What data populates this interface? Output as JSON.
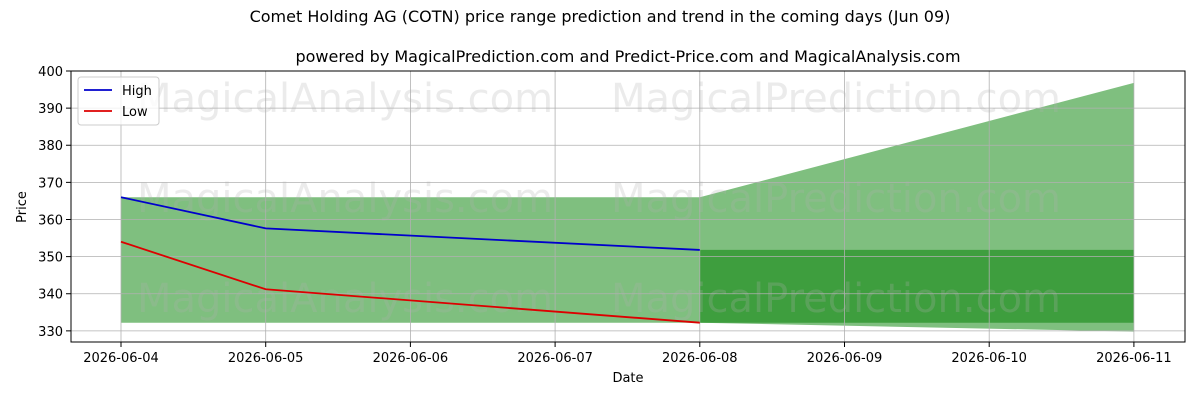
{
  "chart_data": {
    "type": "line",
    "title": "Comet Holding AG (COTN) price range prediction and trend in the coming days (Jun 09)",
    "subtitle": "powered by MagicalPrediction.com and Predict-Price.com and MagicalAnalysis.com",
    "xlabel": "Date",
    "ylabel": "Price",
    "x": [
      "2026-06-04",
      "2026-06-05",
      "2026-06-06",
      "2026-06-07",
      "2026-06-08",
      "2026-06-09",
      "2026-06-10",
      "2026-06-11"
    ],
    "ylim": [
      327,
      400
    ],
    "yticks": [
      330,
      340,
      350,
      360,
      370,
      380,
      390,
      400
    ],
    "grid": true,
    "legend_position": "top-left",
    "series": [
      {
        "name": "High",
        "color": "#0000cc",
        "x": [
          "2026-06-04",
          "2026-06-05",
          "2026-06-08"
        ],
        "values": [
          366.0,
          357.6,
          351.8
        ]
      },
      {
        "name": "Low",
        "color": "#dd0000",
        "x": [
          "2026-06-04",
          "2026-06-05",
          "2026-06-08"
        ],
        "values": [
          354.0,
          341.2,
          332.2
        ]
      }
    ],
    "bands": [
      {
        "color": "#7fbf7f",
        "x": [
          "2026-06-04",
          "2026-06-08"
        ],
        "upper": [
          366.0,
          366.0
        ],
        "lower": [
          332.2,
          332.2
        ]
      },
      {
        "color": "#7fbf7f",
        "x": [
          "2026-06-08",
          "2026-06-11"
        ],
        "upper": [
          366.0,
          396.8
        ],
        "lower": [
          332.2,
          329.8
        ]
      },
      {
        "color": "#3e9e3e",
        "x": [
          "2026-06-08",
          "2026-06-11"
        ],
        "upper": [
          351.8,
          351.8
        ],
        "lower": [
          332.2,
          332.2
        ]
      }
    ],
    "watermarks": [
      "MagicalAnalysis.com",
      "MagicalPrediction.com"
    ]
  }
}
